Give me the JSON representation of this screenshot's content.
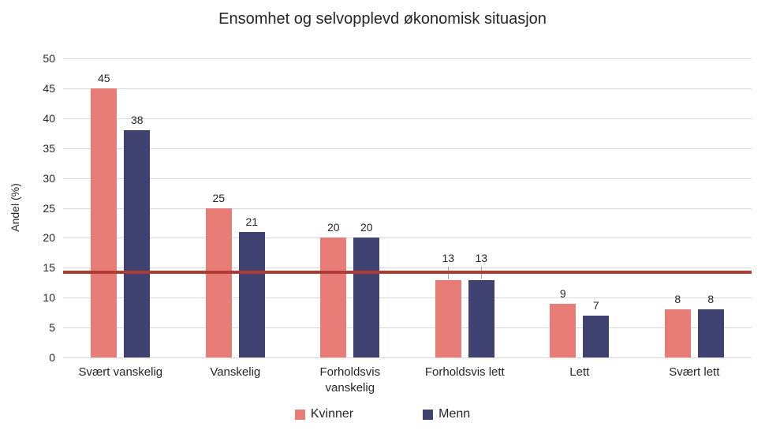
{
  "title": "Ensomhet og selvopplevd økonomisk situasjon",
  "chart_data": {
    "type": "bar",
    "title": "Ensomhet og selvopplevd økonomisk situasjon",
    "ylabel": "Andel  (%)",
    "xlabel": "",
    "ylim": [
      0,
      50
    ],
    "yticks": [
      0,
      5,
      10,
      15,
      20,
      25,
      30,
      35,
      40,
      45,
      50
    ],
    "grid": true,
    "legend_position": "bottom",
    "categories": [
      "Svært vanskelig",
      "Vanskelig",
      "Forholdsvis vanskelig",
      "Forholdsvis lett",
      "Lett",
      "Svært lett"
    ],
    "series": [
      {
        "name": "Kvinner",
        "color": "#E87D77",
        "values": [
          45,
          25,
          20,
          13,
          9,
          8
        ]
      },
      {
        "name": "Menn",
        "color": "#3F4270",
        "values": [
          38,
          21,
          20,
          13,
          7,
          8
        ]
      }
    ],
    "data_labels_shown": true,
    "reference_line": {
      "value": 14.3,
      "color": "#AE3C35"
    },
    "colors": {
      "gridline": "#d9d9d9",
      "text": "#262626",
      "leader_line": "#a6a6a6"
    }
  }
}
